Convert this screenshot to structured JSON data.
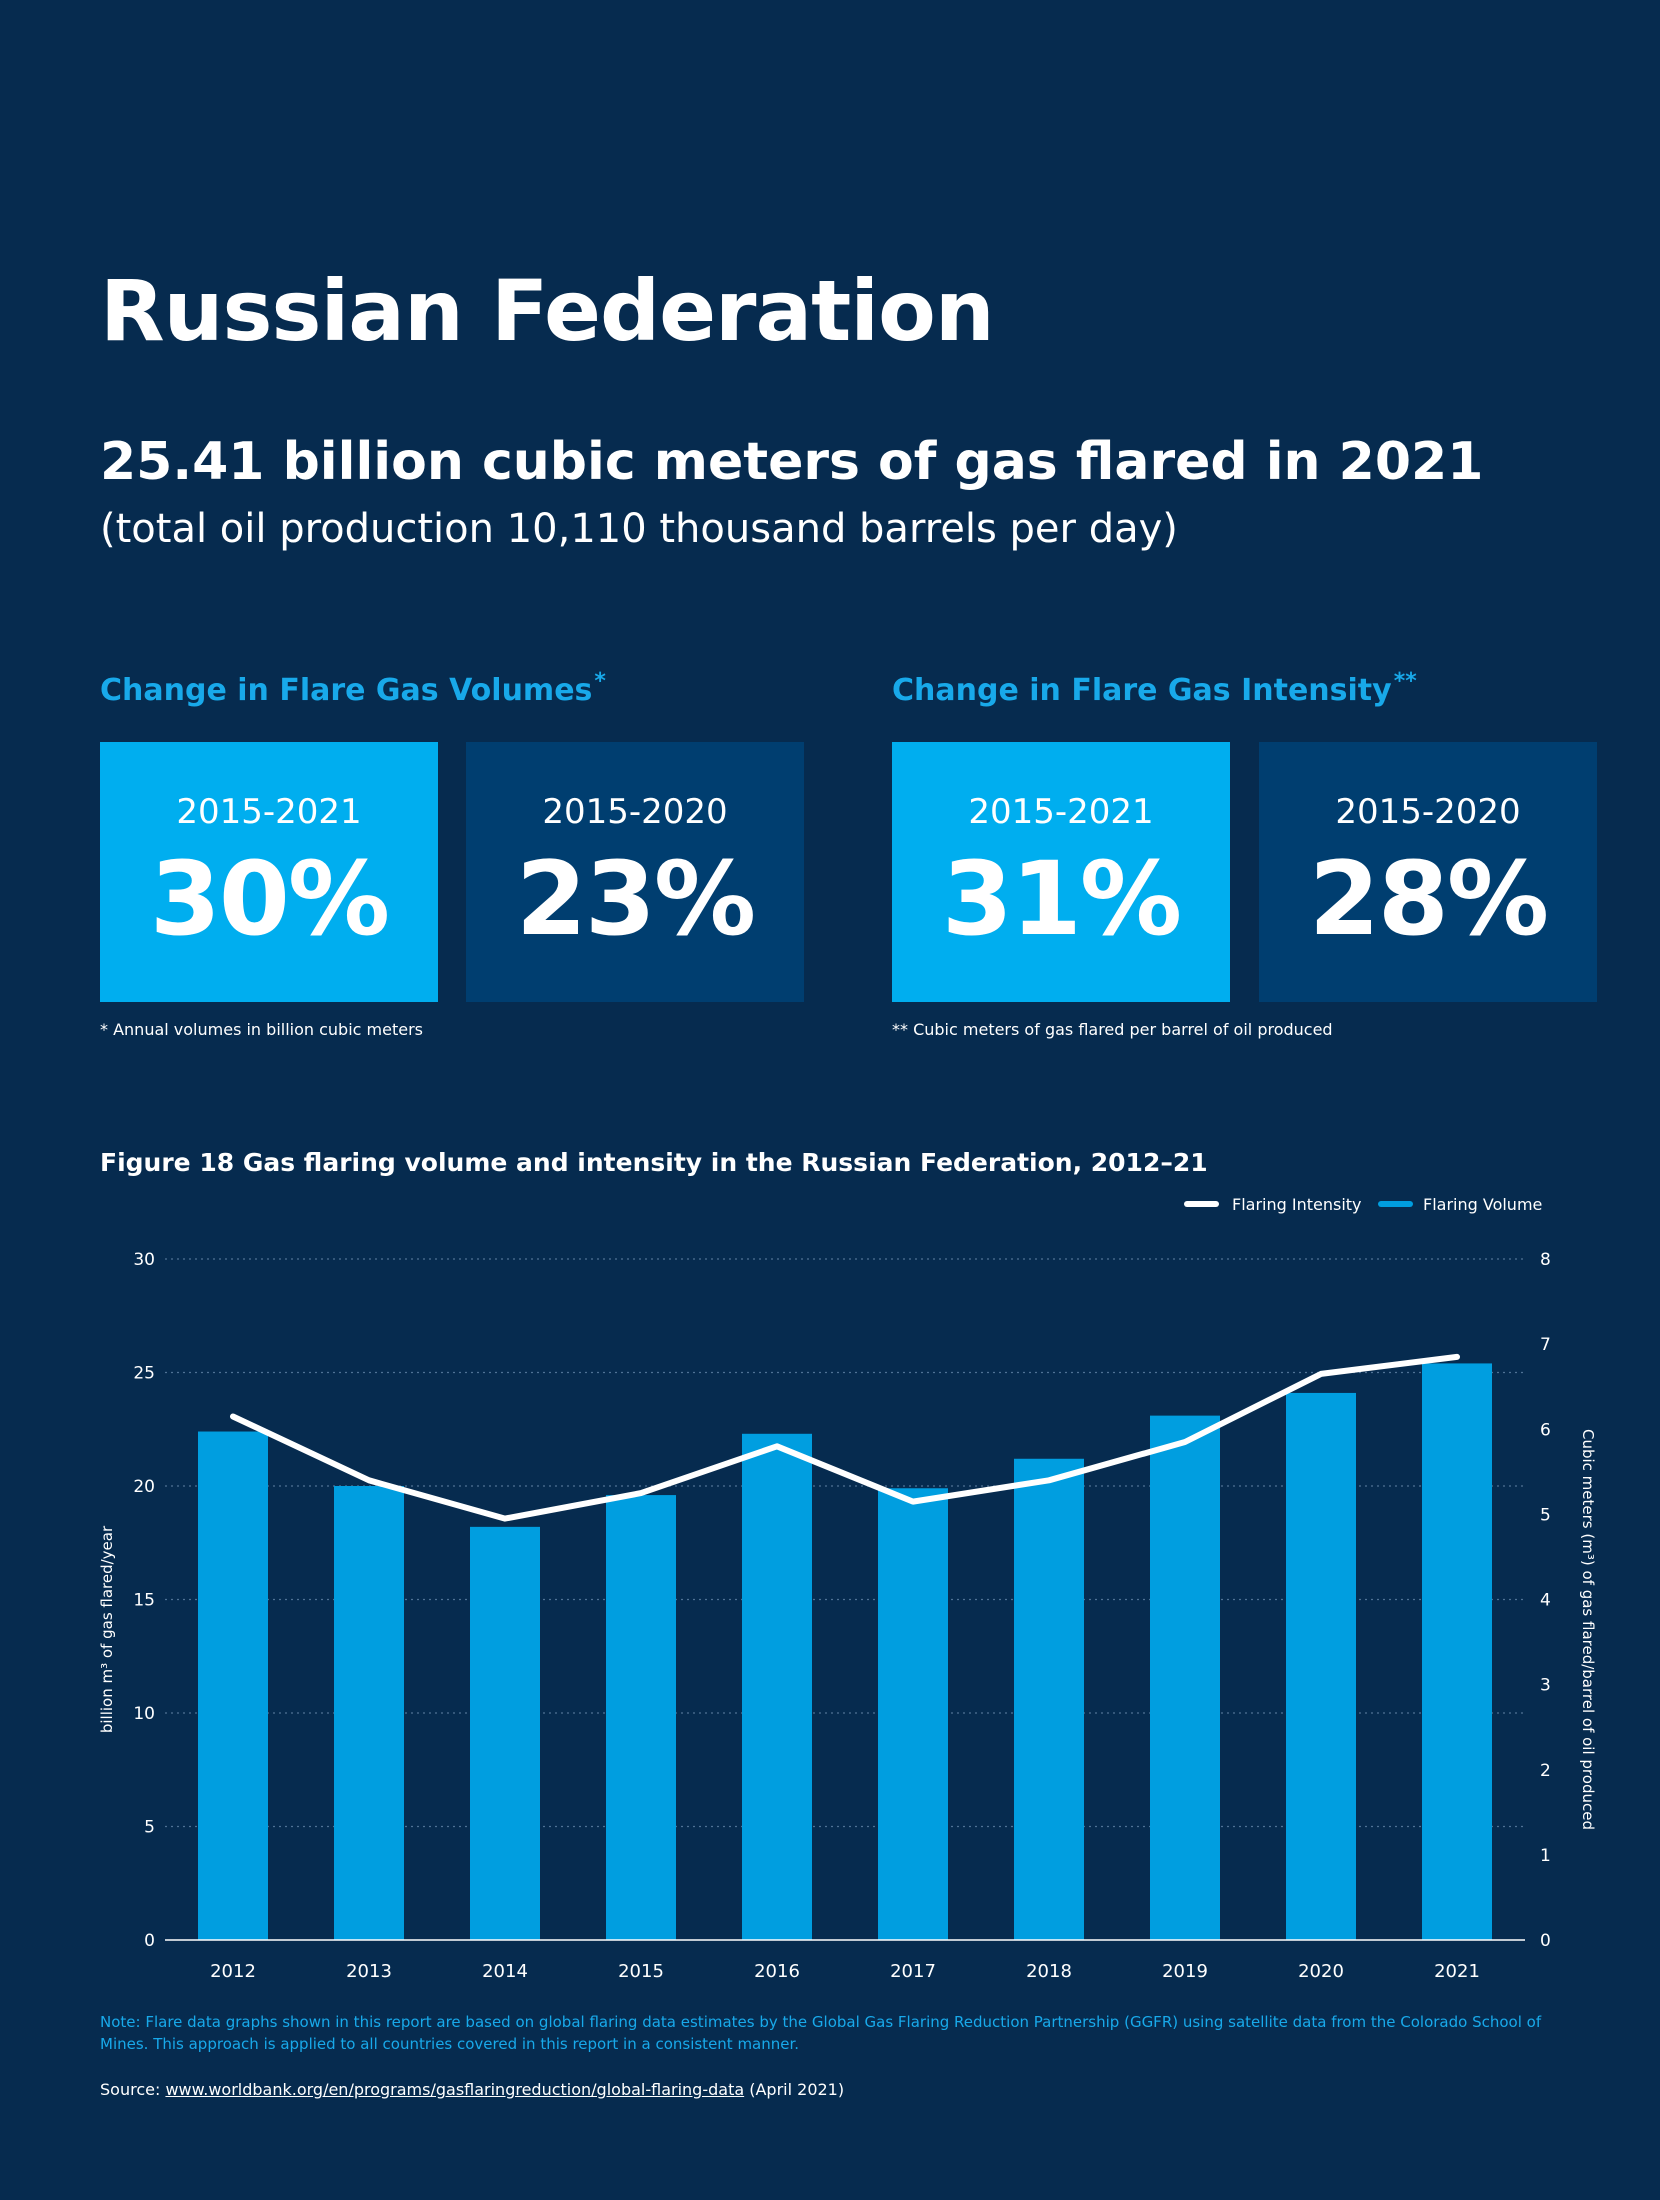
{
  "title": "Russian Federation",
  "headline": "25.41 billion cubic meters of gas flared in 2021",
  "subline": "(total oil production 10,110 thousand barrels per day)",
  "volumes": {
    "heading": "Change in Flare Gas Volumes",
    "heading_mark": "*",
    "boxes": [
      {
        "period": "2015-2021",
        "value": "30%"
      },
      {
        "period": "2015-2020",
        "value": "23%"
      }
    ],
    "footnote": "* Annual volumes in billion cubic meters"
  },
  "intensity": {
    "heading": "Change in Flare Gas Intensity",
    "heading_mark": "**",
    "boxes": [
      {
        "period": "2015-2021",
        "value": "31%"
      },
      {
        "period": "2015-2020",
        "value": "28%"
      }
    ],
    "footnote": "** Cubic meters of gas flared per barrel of oil produced"
  },
  "figure_title": "Figure 18 Gas flaring volume and intensity in the Russian Federation, 2012–21",
  "colors": {
    "background": "#062b4f",
    "bar": "#009ee0",
    "line": "#ffffff",
    "accent": "#18a9ea",
    "box_light": "#00aeef",
    "box_dark": "#003e70"
  },
  "chart_data": {
    "type": "bar",
    "title": "Figure 18 Gas flaring volume and intensity in the Russian Federation, 2012–21",
    "categories": [
      "2012",
      "2013",
      "2014",
      "2015",
      "2016",
      "2017",
      "2018",
      "2019",
      "2020",
      "2021"
    ],
    "series": [
      {
        "name": "Flaring Volume",
        "type": "bar",
        "axis": "left",
        "values": [
          22.4,
          20.0,
          18.2,
          19.6,
          22.3,
          19.9,
          21.2,
          23.1,
          24.1,
          25.4
        ]
      },
      {
        "name": "Flaring Intensity",
        "type": "line",
        "axis": "right",
        "values": [
          6.15,
          5.4,
          4.95,
          5.25,
          5.8,
          5.15,
          5.4,
          5.85,
          6.65,
          6.85
        ]
      }
    ],
    "ylabel": "billion m³ of gas flared/year",
    "ylabel_right": "Cubic meters (m³) of gas flared/barrel of oil produced",
    "ylim": [
      0,
      30
    ],
    "ylim_right": [
      0,
      8
    ],
    "yticks": [
      "0",
      "5",
      "10",
      "15",
      "20",
      "25",
      "30"
    ],
    "yticks_right": [
      "0",
      "1",
      "2",
      "3",
      "4",
      "5",
      "6",
      "7",
      "8"
    ],
    "legend": [
      "Flaring Intensity",
      "Flaring Volume"
    ],
    "legend_position": "top-right",
    "grid": "dotted horizontal"
  },
  "note": "Note: Flare data graphs shown in this report are based on global flaring data estimates by the Global Gas Flaring Reduction Partnership (GGFR) using satellite data from the Colorado School of Mines. This approach is applied to all countries covered in this report in a consistent manner.",
  "source": {
    "label": "Source:",
    "link": "www.worldbank.org/en/programs/gasflaringreduction/global-flaring-data",
    "suffix": "(April 2021)"
  }
}
